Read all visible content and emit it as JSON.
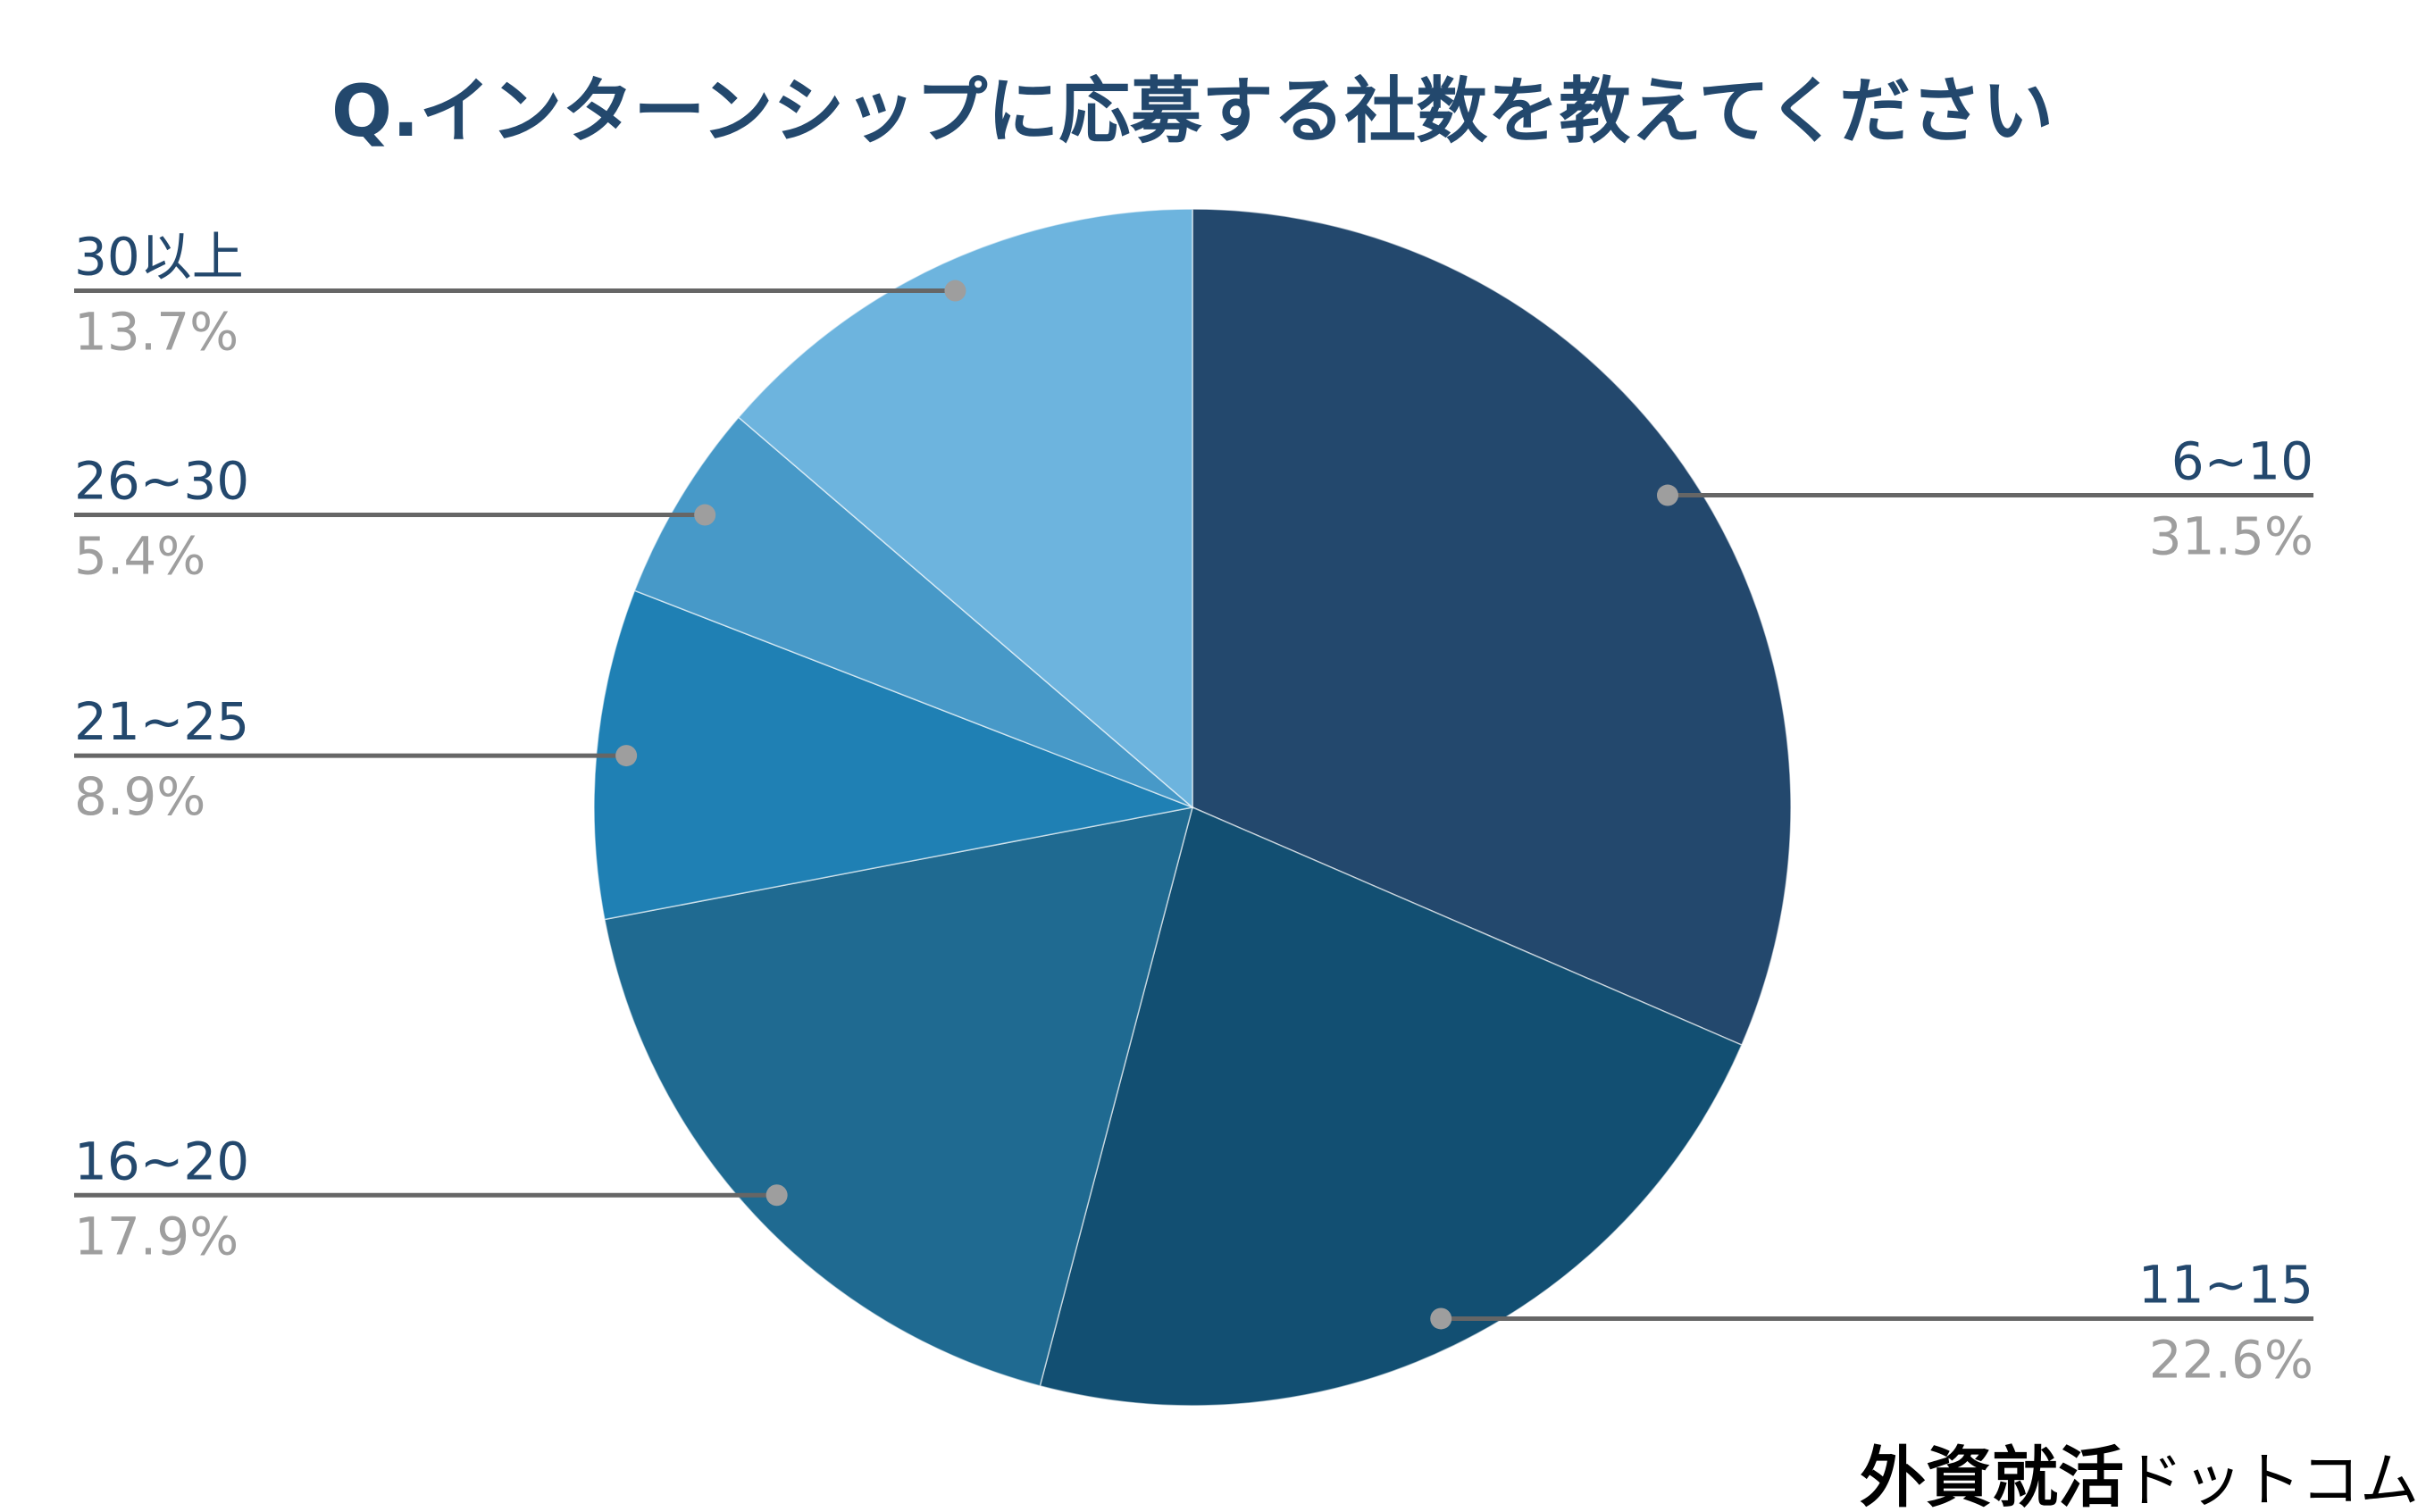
{
  "chart_data": {
    "type": "pie",
    "title": "Q.インターンシップに応募する社数を教えてください",
    "categories": [
      "6~10",
      "11~15",
      "16~20",
      "21~25",
      "26~30",
      "30以上"
    ],
    "values": [
      31.5,
      22.6,
      17.9,
      8.9,
      5.4,
      13.7
    ],
    "value_labels": [
      "31.5%",
      "22.6%",
      "17.9%",
      "8.9%",
      "5.4%",
      "13.7%"
    ],
    "colors": [
      "#23486d",
      "#124f72",
      "#1f6a91",
      "#1f80b4",
      "#4799c8",
      "#6db4de"
    ]
  },
  "watermark": {
    "brand": "外資就活",
    "suffix": "ドットコム"
  }
}
